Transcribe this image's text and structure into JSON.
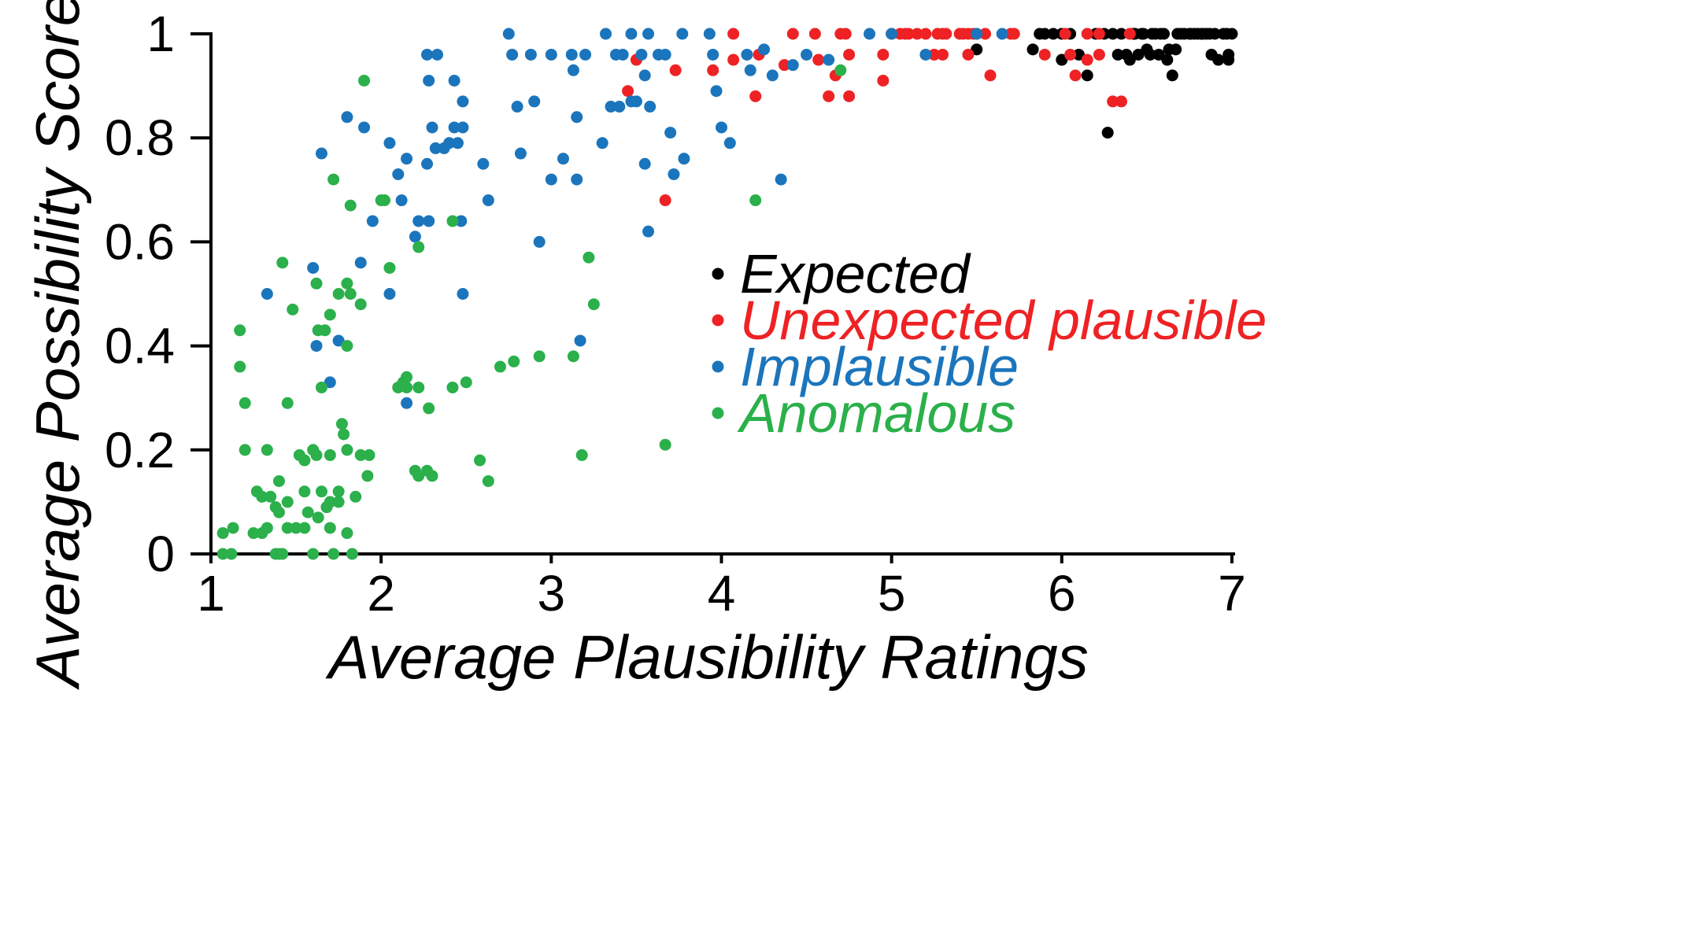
{
  "chart_data": {
    "type": "scatter",
    "title": "",
    "xlabel": "Average Plausibility Ratings",
    "ylabel": "Average Possibility Scores",
    "xlim": [
      1,
      7
    ],
    "ylim": [
      0,
      1
    ],
    "xticks": [
      "1",
      "2",
      "3",
      "4",
      "5",
      "6",
      "7"
    ],
    "yticks": [
      "0",
      "0.2",
      "0.4",
      "0.6",
      "0.8",
      "1"
    ],
    "grid": false,
    "legend": {
      "position": "center-right"
    },
    "series": [
      {
        "name": "Expected",
        "color": "#000000",
        "points": [
          [
            5.5,
            0.97
          ],
          [
            5.83,
            0.97
          ],
          [
            5.87,
            1.0
          ],
          [
            5.9,
            1.0
          ],
          [
            5.95,
            1.0
          ],
          [
            6.0,
            1.0
          ],
          [
            6.05,
            1.0
          ],
          [
            6.0,
            0.95
          ],
          [
            6.1,
            0.96
          ],
          [
            6.15,
            0.92
          ],
          [
            6.2,
            1.0
          ],
          [
            6.25,
            1.0
          ],
          [
            6.3,
            1.0
          ],
          [
            6.27,
            0.81
          ],
          [
            6.33,
            0.96
          ],
          [
            6.35,
            1.0
          ],
          [
            6.38,
            0.96
          ],
          [
            6.4,
            0.95
          ],
          [
            6.42,
            1.0
          ],
          [
            6.45,
            0.96
          ],
          [
            6.47,
            1.0
          ],
          [
            6.5,
            0.97
          ],
          [
            6.52,
            0.96
          ],
          [
            6.55,
            1.0
          ],
          [
            6.57,
            0.96
          ],
          [
            6.6,
            1.0
          ],
          [
            6.62,
            0.95
          ],
          [
            6.63,
            0.97
          ],
          [
            6.65,
            0.92
          ],
          [
            6.67,
            0.97
          ],
          [
            6.7,
            1.0
          ],
          [
            6.72,
            1.0
          ],
          [
            6.75,
            1.0
          ],
          [
            6.78,
            1.0
          ],
          [
            6.8,
            1.0
          ],
          [
            6.82,
            1.0
          ],
          [
            6.85,
            1.0
          ],
          [
            6.87,
            1.0
          ],
          [
            6.88,
            0.96
          ],
          [
            6.9,
            1.0
          ],
          [
            6.92,
            0.95
          ],
          [
            6.95,
            1.0
          ],
          [
            6.97,
            1.0
          ],
          [
            6.98,
            0.96
          ],
          [
            7.0,
            1.0
          ],
          [
            6.68,
            1.0
          ],
          [
            6.58,
            1.0
          ],
          [
            6.53,
            1.0
          ],
          [
            6.48,
            1.0
          ],
          [
            6.43,
            1.0
          ],
          [
            6.98,
            0.95
          ],
          [
            6.83,
            1.0
          ],
          [
            6.76,
            1.0
          ]
        ]
      },
      {
        "name": "Unexpected plausible",
        "color": "#ee2224",
        "points": [
          [
            3.45,
            0.89
          ],
          [
            3.5,
            0.95
          ],
          [
            3.67,
            0.68
          ],
          [
            3.73,
            0.93
          ],
          [
            3.95,
            0.93
          ],
          [
            4.07,
            1.0
          ],
          [
            4.07,
            0.95
          ],
          [
            4.2,
            0.88
          ],
          [
            4.22,
            0.96
          ],
          [
            4.37,
            0.94
          ],
          [
            4.42,
            1.0
          ],
          [
            4.55,
            1.0
          ],
          [
            4.57,
            0.95
          ],
          [
            4.63,
            0.88
          ],
          [
            4.67,
            0.92
          ],
          [
            4.7,
            1.0
          ],
          [
            4.73,
            1.0
          ],
          [
            4.75,
            0.96
          ],
          [
            4.75,
            0.88
          ],
          [
            4.95,
            0.96
          ],
          [
            4.95,
            0.91
          ],
          [
            5.0,
            1.0
          ],
          [
            5.05,
            1.0
          ],
          [
            5.08,
            1.0
          ],
          [
            5.1,
            1.0
          ],
          [
            5.15,
            1.0
          ],
          [
            5.25,
            0.96
          ],
          [
            5.3,
            1.0
          ],
          [
            5.32,
            1.0
          ],
          [
            5.3,
            0.96
          ],
          [
            5.4,
            1.0
          ],
          [
            5.42,
            1.0
          ],
          [
            5.45,
            1.0
          ],
          [
            5.48,
            1.0
          ],
          [
            5.5,
            1.0
          ],
          [
            5.45,
            0.96
          ],
          [
            5.55,
            1.0
          ],
          [
            5.58,
            0.92
          ],
          [
            5.7,
            1.0
          ],
          [
            5.72,
            1.0
          ],
          [
            5.9,
            0.96
          ],
          [
            6.05,
            0.96
          ],
          [
            6.08,
            0.92
          ],
          [
            6.15,
            0.95
          ],
          [
            6.15,
            1.0
          ],
          [
            6.22,
            1.0
          ],
          [
            6.22,
            0.96
          ],
          [
            6.3,
            0.87
          ],
          [
            6.35,
            0.87
          ],
          [
            6.4,
            1.0
          ],
          [
            5.2,
            1.0
          ],
          [
            5.27,
            1.0
          ],
          [
            6.02,
            1.0
          ]
        ]
      },
      {
        "name": "Implausible",
        "color": "#1b75bc",
        "points": [
          [
            1.33,
            0.5
          ],
          [
            1.6,
            0.55
          ],
          [
            1.62,
            0.4
          ],
          [
            1.65,
            0.77
          ],
          [
            1.68,
            0.09
          ],
          [
            1.7,
            0.33
          ],
          [
            1.75,
            0.41
          ],
          [
            1.8,
            0.84
          ],
          [
            1.88,
            0.56
          ],
          [
            1.9,
            0.82
          ],
          [
            1.95,
            0.64
          ],
          [
            2.05,
            0.5
          ],
          [
            2.05,
            0.79
          ],
          [
            2.1,
            0.73
          ],
          [
            2.12,
            0.68
          ],
          [
            2.15,
            0.76
          ],
          [
            2.15,
            0.29
          ],
          [
            2.2,
            0.61
          ],
          [
            2.22,
            0.64
          ],
          [
            2.27,
            0.75
          ],
          [
            2.28,
            0.64
          ],
          [
            2.27,
            0.96
          ],
          [
            2.28,
            0.91
          ],
          [
            2.3,
            0.82
          ],
          [
            2.32,
            0.78
          ],
          [
            2.33,
            0.96
          ],
          [
            2.37,
            0.78
          ],
          [
            2.4,
            0.79
          ],
          [
            2.43,
            0.82
          ],
          [
            2.43,
            0.91
          ],
          [
            2.45,
            0.79
          ],
          [
            2.47,
            0.64
          ],
          [
            2.48,
            0.82
          ],
          [
            2.48,
            0.87
          ],
          [
            2.48,
            0.5
          ],
          [
            2.6,
            0.75
          ],
          [
            2.63,
            0.68
          ],
          [
            2.75,
            1.0
          ],
          [
            2.77,
            0.96
          ],
          [
            2.8,
            0.86
          ],
          [
            2.82,
            0.77
          ],
          [
            2.88,
            0.96
          ],
          [
            2.9,
            0.87
          ],
          [
            2.93,
            0.6
          ],
          [
            3.0,
            0.96
          ],
          [
            3.0,
            0.72
          ],
          [
            3.07,
            0.76
          ],
          [
            3.12,
            0.96
          ],
          [
            3.13,
            0.93
          ],
          [
            3.15,
            0.84
          ],
          [
            3.15,
            0.72
          ],
          [
            3.17,
            0.41
          ],
          [
            3.2,
            0.96
          ],
          [
            3.3,
            0.79
          ],
          [
            3.32,
            1.0
          ],
          [
            3.35,
            0.86
          ],
          [
            3.38,
            0.96
          ],
          [
            3.4,
            0.86
          ],
          [
            3.42,
            0.96
          ],
          [
            3.47,
            0.87
          ],
          [
            3.5,
            0.87
          ],
          [
            3.53,
            0.96
          ],
          [
            3.55,
            0.92
          ],
          [
            3.55,
            0.75
          ],
          [
            3.57,
            0.62
          ],
          [
            3.58,
            0.86
          ],
          [
            3.63,
            0.96
          ],
          [
            3.67,
            0.96
          ],
          [
            3.7,
            0.81
          ],
          [
            3.72,
            0.73
          ],
          [
            3.78,
            0.76
          ],
          [
            3.95,
            0.96
          ],
          [
            3.97,
            0.89
          ],
          [
            4.0,
            0.82
          ],
          [
            4.05,
            0.79
          ],
          [
            4.15,
            0.96
          ],
          [
            4.17,
            0.93
          ],
          [
            4.25,
            0.97
          ],
          [
            4.3,
            0.92
          ],
          [
            4.35,
            0.72
          ],
          [
            4.42,
            0.94
          ],
          [
            4.5,
            0.96
          ],
          [
            4.63,
            0.95
          ],
          [
            4.87,
            1.0
          ],
          [
            5.0,
            1.0
          ],
          [
            5.2,
            0.96
          ],
          [
            5.5,
            1.0
          ],
          [
            5.65,
            1.0
          ],
          [
            3.57,
            1.0
          ],
          [
            3.47,
            1.0
          ],
          [
            3.77,
            1.0
          ],
          [
            3.93,
            1.0
          ]
        ]
      },
      {
        "name": "Anomalous",
        "color": "#2bb04b",
        "points": [
          [
            1.07,
            0.0
          ],
          [
            1.07,
            0.04
          ],
          [
            1.12,
            0.0
          ],
          [
            1.13,
            0.05
          ],
          [
            1.17,
            0.43
          ],
          [
            1.17,
            0.36
          ],
          [
            1.2,
            0.29
          ],
          [
            1.2,
            0.2
          ],
          [
            1.25,
            0.04
          ],
          [
            1.27,
            0.12
          ],
          [
            1.3,
            0.04
          ],
          [
            1.3,
            0.11
          ],
          [
            1.33,
            0.05
          ],
          [
            1.33,
            0.2
          ],
          [
            1.35,
            0.11
          ],
          [
            1.38,
            0.0
          ],
          [
            1.38,
            0.09
          ],
          [
            1.4,
            0.0
          ],
          [
            1.4,
            0.14
          ],
          [
            1.4,
            0.08
          ],
          [
            1.42,
            0.56
          ],
          [
            1.42,
            0.0
          ],
          [
            1.45,
            0.1
          ],
          [
            1.45,
            0.05
          ],
          [
            1.45,
            0.29
          ],
          [
            1.48,
            0.47
          ],
          [
            1.5,
            0.05
          ],
          [
            1.52,
            0.19
          ],
          [
            1.55,
            0.18
          ],
          [
            1.55,
            0.05
          ],
          [
            1.55,
            0.12
          ],
          [
            1.57,
            0.08
          ],
          [
            1.6,
            0.0
          ],
          [
            1.6,
            0.2
          ],
          [
            1.62,
            0.19
          ],
          [
            1.62,
            0.52
          ],
          [
            1.63,
            0.43
          ],
          [
            1.63,
            0.07
          ],
          [
            1.65,
            0.32
          ],
          [
            1.65,
            0.12
          ],
          [
            1.67,
            0.43
          ],
          [
            1.68,
            0.09
          ],
          [
            1.7,
            0.46
          ],
          [
            1.7,
            0.05
          ],
          [
            1.7,
            0.1
          ],
          [
            1.7,
            0.19
          ],
          [
            1.72,
            0.0
          ],
          [
            1.72,
            0.72
          ],
          [
            1.75,
            0.5
          ],
          [
            1.75,
            0.12
          ],
          [
            1.75,
            0.1
          ],
          [
            1.77,
            0.25
          ],
          [
            1.78,
            0.23
          ],
          [
            1.8,
            0.04
          ],
          [
            1.8,
            0.2
          ],
          [
            1.8,
            0.4
          ],
          [
            1.8,
            0.52
          ],
          [
            1.82,
            0.67
          ],
          [
            1.82,
            0.5
          ],
          [
            1.83,
            0.0
          ],
          [
            1.85,
            0.11
          ],
          [
            1.88,
            0.48
          ],
          [
            1.88,
            0.19
          ],
          [
            1.9,
            0.91
          ],
          [
            1.92,
            0.15
          ],
          [
            1.93,
            0.19
          ],
          [
            2.0,
            0.68
          ],
          [
            2.02,
            0.68
          ],
          [
            2.05,
            0.55
          ],
          [
            2.1,
            0.32
          ],
          [
            2.13,
            0.33
          ],
          [
            2.15,
            0.34
          ],
          [
            2.15,
            0.32
          ],
          [
            2.2,
            0.16
          ],
          [
            2.22,
            0.15
          ],
          [
            2.22,
            0.32
          ],
          [
            2.22,
            0.59
          ],
          [
            2.27,
            0.16
          ],
          [
            2.28,
            0.28
          ],
          [
            2.3,
            0.15
          ],
          [
            2.42,
            0.32
          ],
          [
            2.42,
            0.64
          ],
          [
            2.5,
            0.33
          ],
          [
            2.58,
            0.18
          ],
          [
            2.63,
            0.14
          ],
          [
            2.7,
            0.36
          ],
          [
            2.78,
            0.37
          ],
          [
            2.93,
            0.38
          ],
          [
            3.13,
            0.38
          ],
          [
            3.18,
            0.19
          ],
          [
            3.22,
            0.57
          ],
          [
            3.25,
            0.48
          ],
          [
            3.67,
            0.21
          ],
          [
            4.2,
            0.68
          ],
          [
            4.7,
            0.93
          ]
        ]
      }
    ]
  }
}
